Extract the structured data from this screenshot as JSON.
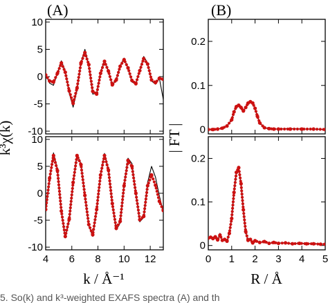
{
  "panel_labels": {
    "a": "(A)",
    "b": "(B)"
  },
  "axis_labels": {
    "left_y": "k³χ(k)",
    "left_x": "k / Å⁻¹",
    "right_y": "| FT |",
    "right_x": "R / Å"
  },
  "caption_fragment": "5. So(k) and k³-weighted EXAFS spectra (A) and th",
  "colors": {
    "fit": "#cc1111",
    "data": "#000000",
    "axis": "#000000"
  },
  "chart_data": [
    {
      "id": "A-top",
      "type": "line",
      "xlim": [
        4,
        13
      ],
      "ylim": [
        -10.5,
        10.5
      ],
      "xticks": [
        4,
        6,
        8,
        10,
        12
      ],
      "yticks": [
        -10,
        -5,
        0,
        5,
        10
      ],
      "ytick_labels": [
        "-10",
        "-5",
        "0",
        "5",
        "10"
      ],
      "series": [
        {
          "role": "data",
          "style": "thin black line",
          "x": [
            4.0,
            4.3,
            4.6,
            4.9,
            5.2,
            5.5,
            5.8,
            6.1,
            6.4,
            6.7,
            7.0,
            7.3,
            7.6,
            7.9,
            8.2,
            8.5,
            8.8,
            9.1,
            9.4,
            9.7,
            10.0,
            10.3,
            10.6,
            10.9,
            11.2,
            11.5,
            11.8,
            12.1,
            12.4,
            12.7,
            13.0
          ],
          "y": [
            0.4,
            -1.2,
            -1.6,
            0.6,
            2.9,
            1.0,
            -3.0,
            -5.6,
            -2.5,
            2.5,
            5.0,
            2.0,
            -3.2,
            -3.0,
            0.8,
            3.0,
            1.0,
            -1.6,
            -0.5,
            2.0,
            3.4,
            1.5,
            -1.0,
            -1.3,
            1.2,
            3.7,
            2.5,
            -0.8,
            -1.4,
            -0.3,
            -4.2
          ]
        },
        {
          "role": "fit",
          "style": "red dotted line",
          "x": [
            4.0,
            4.3,
            4.6,
            4.9,
            5.2,
            5.5,
            5.8,
            6.1,
            6.4,
            6.7,
            7.0,
            7.3,
            7.6,
            7.9,
            8.2,
            8.5,
            8.8,
            9.1,
            9.4,
            9.7,
            10.0,
            10.3,
            10.6,
            10.9,
            11.2,
            11.5,
            11.8,
            12.1,
            12.4,
            12.7,
            13.0
          ],
          "y": [
            0.3,
            -0.8,
            -1.0,
            0.6,
            2.5,
            0.8,
            -2.6,
            -4.9,
            -2.1,
            2.5,
            4.4,
            2.2,
            -2.7,
            -3.2,
            0.6,
            2.8,
            1.0,
            -1.5,
            -0.6,
            1.9,
            3.1,
            1.6,
            -0.7,
            -1.3,
            1.1,
            3.3,
            2.3,
            -0.6,
            -1.1,
            -0.3,
            -0.5
          ]
        }
      ]
    },
    {
      "id": "A-bottom",
      "type": "line",
      "xlim": [
        4,
        13
      ],
      "ylim": [
        -10.5,
        10.5
      ],
      "xticks": [
        4,
        6,
        8,
        10,
        12
      ],
      "yticks": [
        -10,
        -5,
        0,
        5,
        10
      ],
      "ytick_labels": [
        "-10",
        "-5",
        "0",
        "5",
        "10"
      ],
      "xtick_labels": [
        "4",
        "6",
        "8",
        "10",
        "12"
      ],
      "series": [
        {
          "role": "data",
          "style": "thin black line",
          "x": [
            4.0,
            4.3,
            4.6,
            4.9,
            5.2,
            5.5,
            5.8,
            6.1,
            6.4,
            6.7,
            7.0,
            7.3,
            7.6,
            7.9,
            8.2,
            8.5,
            8.8,
            9.1,
            9.4,
            9.7,
            10.0,
            10.3,
            10.6,
            10.9,
            11.2,
            11.5,
            11.8,
            12.1,
            12.4,
            12.7,
            13.0
          ],
          "y": [
            -3.5,
            2.5,
            7.5,
            4.5,
            -3.5,
            -8.3,
            -5.0,
            2.0,
            7.2,
            5.5,
            -0.5,
            -6.0,
            -8.0,
            -3.0,
            3.5,
            7.4,
            4.5,
            -2.0,
            -6.8,
            -5.5,
            1.5,
            6.5,
            5.5,
            0.0,
            -5.3,
            -4.5,
            2.0,
            5.0,
            3.0,
            -0.5,
            -3.5
          ]
        },
        {
          "role": "fit",
          "style": "red dotted line",
          "x": [
            4.0,
            4.3,
            4.6,
            4.9,
            5.2,
            5.5,
            5.8,
            6.1,
            6.4,
            6.7,
            7.0,
            7.3,
            7.6,
            7.9,
            8.2,
            8.5,
            8.8,
            9.1,
            9.4,
            9.7,
            10.0,
            10.3,
            10.6,
            10.9,
            11.2,
            11.5,
            11.8,
            12.1,
            12.4,
            12.7,
            13.0
          ],
          "y": [
            -3.0,
            2.8,
            7.0,
            4.2,
            -3.3,
            -8.0,
            -4.8,
            2.0,
            7.0,
            5.3,
            -0.4,
            -5.8,
            -7.7,
            -3.0,
            3.4,
            7.0,
            4.3,
            -1.9,
            -6.5,
            -5.2,
            1.4,
            6.1,
            5.0,
            0.0,
            -4.9,
            -4.3,
            1.4,
            3.4,
            1.5,
            -1.5,
            -3.2
          ]
        }
      ]
    },
    {
      "id": "B-top",
      "type": "line",
      "xlim": [
        0,
        5
      ],
      "ylim": [
        -0.01,
        0.25
      ],
      "xticks": [
        0,
        1,
        2,
        3,
        4,
        5
      ],
      "yticks": [
        0,
        0.1,
        0.2
      ],
      "ytick_labels": [
        "0",
        "0.1",
        "0.2"
      ],
      "series": [
        {
          "role": "data",
          "style": "thin black line",
          "x": [
            0.0,
            0.2,
            0.4,
            0.6,
            0.8,
            1.0,
            1.1,
            1.2,
            1.3,
            1.4,
            1.5,
            1.6,
            1.7,
            1.8,
            1.9,
            2.0,
            2.1,
            2.2,
            2.4,
            2.6,
            2.8,
            3.0,
            3.5,
            4.0,
            4.5,
            5.0
          ],
          "y": [
            0.0,
            0.0,
            0.001,
            0.003,
            0.008,
            0.022,
            0.04,
            0.052,
            0.055,
            0.05,
            0.042,
            0.05,
            0.06,
            0.063,
            0.06,
            0.048,
            0.03,
            0.015,
            0.004,
            0.002,
            0.001,
            0.001,
            0.002,
            0.001,
            0.001,
            0.0
          ]
        },
        {
          "role": "fit",
          "style": "red dotted line",
          "x": [
            0.0,
            0.2,
            0.4,
            0.6,
            0.8,
            1.0,
            1.1,
            1.2,
            1.3,
            1.4,
            1.5,
            1.6,
            1.7,
            1.8,
            1.9,
            2.0,
            2.1,
            2.2,
            2.4,
            2.6,
            2.8,
            3.0,
            3.5,
            4.0,
            4.5,
            5.0
          ],
          "y": [
            0.0,
            0.0,
            0.001,
            0.003,
            0.008,
            0.022,
            0.04,
            0.052,
            0.055,
            0.05,
            0.042,
            0.05,
            0.06,
            0.063,
            0.06,
            0.048,
            0.03,
            0.015,
            0.004,
            0.002,
            0.001,
            0.001,
            0.001,
            0.001,
            0.001,
            0.0
          ]
        }
      ]
    },
    {
      "id": "B-bottom",
      "type": "line",
      "xlim": [
        0,
        5
      ],
      "ylim": [
        -0.01,
        0.25
      ],
      "xticks": [
        0,
        1,
        2,
        3,
        4,
        5
      ],
      "yticks": [
        0,
        0.1,
        0.2
      ],
      "ytick_labels": [
        "0",
        "0.1",
        "0.2"
      ],
      "xtick_labels": [
        "0",
        "1",
        "2",
        "3",
        "4",
        "5"
      ],
      "series": [
        {
          "role": "data",
          "style": "thin black line",
          "x": [
            0.0,
            0.1,
            0.2,
            0.3,
            0.4,
            0.5,
            0.6,
            0.7,
            0.8,
            0.9,
            1.0,
            1.1,
            1.2,
            1.3,
            1.4,
            1.5,
            1.6,
            1.7,
            1.8,
            1.9,
            2.0,
            2.2,
            2.4,
            2.6,
            2.8,
            3.0,
            3.3,
            3.6,
            3.9,
            4.2,
            4.5,
            4.8,
            5.0
          ],
          "y": [
            0.018,
            0.02,
            0.015,
            0.022,
            0.012,
            0.028,
            0.01,
            0.015,
            0.008,
            0.03,
            0.065,
            0.125,
            0.17,
            0.18,
            0.14,
            0.08,
            0.03,
            0.01,
            0.015,
            0.005,
            0.012,
            0.006,
            0.01,
            0.004,
            0.008,
            0.005,
            0.007,
            0.003,
            0.006,
            0.004,
            0.005,
            0.003,
            0.004
          ]
        },
        {
          "role": "fit",
          "style": "red dotted line",
          "x": [
            0.0,
            0.1,
            0.2,
            0.3,
            0.4,
            0.5,
            0.6,
            0.7,
            0.8,
            0.9,
            1.0,
            1.1,
            1.2,
            1.3,
            1.4,
            1.5,
            1.6,
            1.7,
            1.8,
            1.9,
            2.0,
            2.2,
            2.4,
            2.6,
            2.8,
            3.0,
            3.3,
            3.6,
            3.9,
            4.2,
            4.5,
            4.8,
            5.0
          ],
          "y": [
            0.017,
            0.019,
            0.016,
            0.02,
            0.013,
            0.024,
            0.012,
            0.014,
            0.01,
            0.028,
            0.062,
            0.122,
            0.168,
            0.179,
            0.142,
            0.082,
            0.032,
            0.012,
            0.014,
            0.006,
            0.011,
            0.007,
            0.009,
            0.005,
            0.007,
            0.005,
            0.006,
            0.004,
            0.005,
            0.004,
            0.004,
            0.003,
            0.003
          ]
        }
      ]
    }
  ]
}
